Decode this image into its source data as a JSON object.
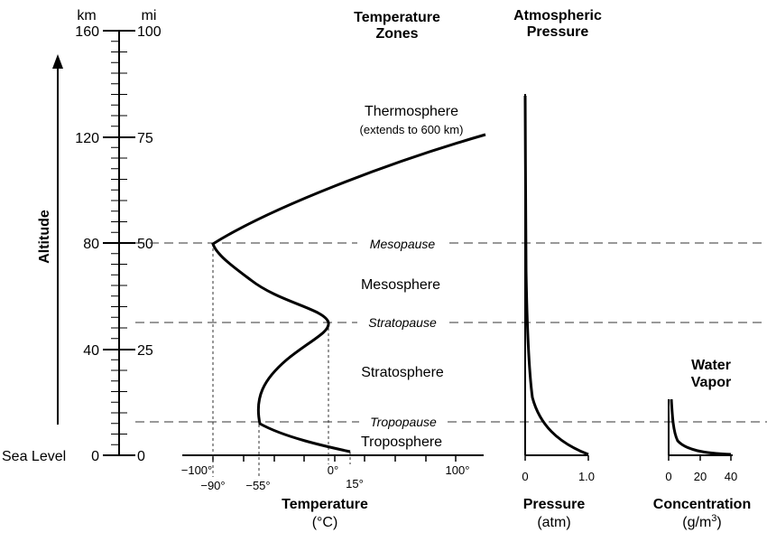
{
  "altitude_axis": {
    "km_header": "km",
    "mi_header": "mi",
    "label": "Altitude",
    "sea_level": "Sea Level",
    "km_ticks": [
      "160",
      "120",
      "80",
      "40",
      "0"
    ],
    "mi_ticks": [
      "100",
      "75",
      "50",
      "25",
      "0"
    ]
  },
  "headers": {
    "zones_line1": "Temperature",
    "zones_line2": "Zones",
    "pressure_line1": "Atmospheric",
    "pressure_line2": "Pressure",
    "vapor_line1": "Water",
    "vapor_line2": "Vapor"
  },
  "zones": {
    "thermosphere": "Thermosphere",
    "thermosphere_note": "(extends to 600 km)",
    "mesopause": "Mesopause",
    "mesosphere": "Mesosphere",
    "stratopause": "Stratopause",
    "stratosphere": "Stratosphere",
    "tropopause": "Tropopause",
    "troposphere": "Troposphere"
  },
  "temperature_axis": {
    "title": "Temperature",
    "unit": "(°C)",
    "ticks": [
      "−100°",
      "0°",
      "15°",
      "100°"
    ],
    "marks": [
      "−90°",
      "−55°"
    ]
  },
  "pressure_axis": {
    "title": "Pressure",
    "unit": "(atm)",
    "ticks": [
      "0",
      "1.0"
    ]
  },
  "vapor_axis": {
    "title": "Concentration",
    "unit_base": "(g/m",
    "unit_sup": "3",
    "unit_close": ")",
    "ticks": [
      "0",
      "20",
      "40"
    ]
  }
}
